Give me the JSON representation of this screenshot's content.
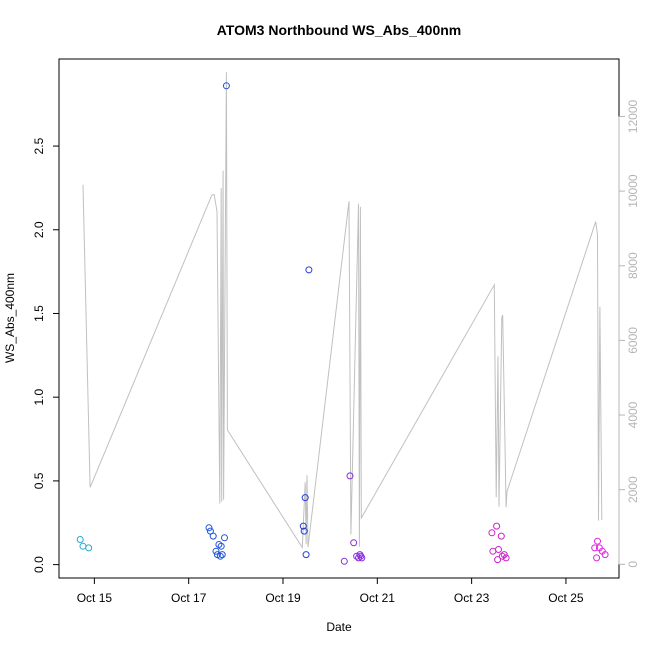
{
  "chart_data": {
    "type": "scatter",
    "title": "ATOM3 Northbound WS_Abs_400nm",
    "xlabel": "Date",
    "ylabel": "WS_Abs_400nm",
    "xlim": [
      "2016-10-14T06:00",
      "2016-10-26T03:00"
    ],
    "ylim": [
      -0.08,
      3.02
    ],
    "y2lim": [
      -367,
      13540
    ],
    "grid": false,
    "legend": "none",
    "x_ticks": [
      {
        "date": "2016-10-15",
        "label": "Oct 15"
      },
      {
        "date": "2016-10-17",
        "label": "Oct 17"
      },
      {
        "date": "2016-10-19",
        "label": "Oct 19"
      },
      {
        "date": "2016-10-21",
        "label": "Oct 21"
      },
      {
        "date": "2016-10-23",
        "label": "Oct 23"
      },
      {
        "date": "2016-10-25",
        "label": "Oct 25"
      }
    ],
    "y_ticks": [
      {
        "value": 0.0,
        "label": "0.0"
      },
      {
        "value": 0.5,
        "label": "0.5"
      },
      {
        "value": 1.0,
        "label": "1.0"
      },
      {
        "value": 1.5,
        "label": "1.5"
      },
      {
        "value": 2.0,
        "label": "2.0"
      },
      {
        "value": 2.5,
        "label": "2.5"
      }
    ],
    "y2_ticks": [
      {
        "value": 0,
        "label": "0"
      },
      {
        "value": 2000,
        "label": "2000"
      },
      {
        "value": 4000,
        "label": "4000"
      },
      {
        "value": 6000,
        "label": "6000"
      },
      {
        "value": 8000,
        "label": "8000"
      },
      {
        "value": 10000,
        "label": "10000"
      },
      {
        "value": 12000,
        "label": "12000"
      }
    ],
    "line_color": "#c0c0c0",
    "altitude_line": [
      [
        "2016-10-14T18:14",
        10170
      ],
      [
        "2016-10-14T21:50",
        2060
      ],
      [
        "2016-10-17T11:46",
        9890
      ],
      [
        "2016-10-17T12:58",
        9910
      ],
      [
        "2016-10-17T14:24",
        9450
      ],
      [
        "2016-10-17T15:50",
        1630
      ],
      [
        "2016-10-17T16:34",
        10080
      ],
      [
        "2016-10-17T16:48",
        1680
      ],
      [
        "2016-10-17T17:31",
        10550
      ],
      [
        "2016-10-17T17:46",
        1730
      ],
      [
        "2016-10-17T19:12",
        13190
      ],
      [
        "2016-10-17T19:41",
        3600
      ],
      [
        "2016-10-19T09:50",
        450
      ],
      [
        "2016-10-19T11:17",
        2200
      ],
      [
        "2016-10-19T11:46",
        540
      ],
      [
        "2016-10-19T12:14",
        2390
      ],
      [
        "2016-10-19T12:43",
        460
      ],
      [
        "2016-10-20T09:36",
        9730
      ],
      [
        "2016-10-20T10:34",
        800
      ],
      [
        "2016-10-20T14:24",
        9660
      ],
      [
        "2016-10-20T14:53",
        470
      ],
      [
        "2016-10-20T15:22",
        9580
      ],
      [
        "2016-10-20T15:50",
        1240
      ],
      [
        "2016-10-23T11:31",
        7490
      ],
      [
        "2016-10-23T12:29",
        1800
      ],
      [
        "2016-10-23T13:26",
        5570
      ],
      [
        "2016-10-23T13:55",
        1540
      ],
      [
        "2016-10-23T15:22",
        6610
      ],
      [
        "2016-10-23T15:50",
        6680
      ],
      [
        "2016-10-23T17:31",
        1530
      ],
      [
        "2016-10-23T18:00",
        1950
      ],
      [
        "2016-10-25T15:07",
        9180
      ],
      [
        "2016-10-25T16:05",
        8830
      ],
      [
        "2016-10-25T16:34",
        1170
      ],
      [
        "2016-10-25T17:17",
        6900
      ],
      [
        "2016-10-25T18:14",
        1190
      ]
    ],
    "points": [
      {
        "x": "2016-10-14T16:48",
        "y": 0.15,
        "color": "#22aad8"
      },
      {
        "x": "2016-10-14T18:14",
        "y": 0.11,
        "color": "#22aad8"
      },
      {
        "x": "2016-10-14T21:07",
        "y": 0.1,
        "color": "#22aad8"
      },
      {
        "x": "2016-10-17T10:19",
        "y": 0.22,
        "color": "#2255dd"
      },
      {
        "x": "2016-10-17T11:02",
        "y": 0.2,
        "color": "#2255dd"
      },
      {
        "x": "2016-10-17T12:29",
        "y": 0.17,
        "color": "#2255dd"
      },
      {
        "x": "2016-10-17T13:55",
        "y": 0.08,
        "color": "#2255dd"
      },
      {
        "x": "2016-10-17T14:38",
        "y": 0.06,
        "color": "#2255dd"
      },
      {
        "x": "2016-10-17T15:22",
        "y": 0.12,
        "color": "#2255dd"
      },
      {
        "x": "2016-10-17T16:05",
        "y": 0.05,
        "color": "#2255dd"
      },
      {
        "x": "2016-10-17T16:34",
        "y": 0.11,
        "color": "#2255dd"
      },
      {
        "x": "2016-10-17T17:02",
        "y": 0.06,
        "color": "#2255dd"
      },
      {
        "x": "2016-10-17T18:14",
        "y": 0.16,
        "color": "#2255dd"
      },
      {
        "x": "2016-10-17T19:12",
        "y": 2.86,
        "color": "#2255dd"
      },
      {
        "x": "2016-10-19T10:19",
        "y": 0.23,
        "color": "#2a3fd9"
      },
      {
        "x": "2016-10-19T10:48",
        "y": 0.2,
        "color": "#2a3fd9"
      },
      {
        "x": "2016-10-19T11:17",
        "y": 0.4,
        "color": "#2a3fd9"
      },
      {
        "x": "2016-10-19T11:46",
        "y": 0.06,
        "color": "#2a3fd9"
      },
      {
        "x": "2016-10-19T13:12",
        "y": 1.76,
        "color": "#2a3fd9"
      },
      {
        "x": "2016-10-20T07:12",
        "y": 0.02,
        "color": "#8a2be2"
      },
      {
        "x": "2016-10-20T10:05",
        "y": 0.53,
        "color": "#8a2be2"
      },
      {
        "x": "2016-10-20T12:00",
        "y": 0.13,
        "color": "#8a2be2"
      },
      {
        "x": "2016-10-20T13:26",
        "y": 0.05,
        "color": "#8a2be2"
      },
      {
        "x": "2016-10-20T14:24",
        "y": 0.04,
        "color": "#8a2be2"
      },
      {
        "x": "2016-10-20T15:07",
        "y": 0.06,
        "color": "#8a2be2"
      },
      {
        "x": "2016-10-20T15:36",
        "y": 0.05,
        "color": "#8a2be2"
      },
      {
        "x": "2016-10-20T16:05",
        "y": 0.04,
        "color": "#8a2be2"
      },
      {
        "x": "2016-10-23T10:19",
        "y": 0.19,
        "color": "#cc22cc"
      },
      {
        "x": "2016-10-23T10:48",
        "y": 0.08,
        "color": "#cc22cc"
      },
      {
        "x": "2016-10-23T12:43",
        "y": 0.23,
        "color": "#cc22cc"
      },
      {
        "x": "2016-10-23T13:12",
        "y": 0.03,
        "color": "#cc22cc"
      },
      {
        "x": "2016-10-23T13:41",
        "y": 0.09,
        "color": "#cc22cc"
      },
      {
        "x": "2016-10-23T15:07",
        "y": 0.17,
        "color": "#cc22cc"
      },
      {
        "x": "2016-10-23T15:36",
        "y": 0.05,
        "color": "#cc22cc"
      },
      {
        "x": "2016-10-23T16:34",
        "y": 0.06,
        "color": "#cc22cc"
      },
      {
        "x": "2016-10-23T17:31",
        "y": 0.04,
        "color": "#cc22cc"
      },
      {
        "x": "2016-10-25T14:38",
        "y": 0.1,
        "color": "#e026e0"
      },
      {
        "x": "2016-10-25T15:36",
        "y": 0.04,
        "color": "#e026e0"
      },
      {
        "x": "2016-10-25T16:05",
        "y": 0.14,
        "color": "#e026e0"
      },
      {
        "x": "2016-10-25T17:02",
        "y": 0.1,
        "color": "#e026e0"
      },
      {
        "x": "2016-10-25T18:29",
        "y": 0.08,
        "color": "#e026e0"
      },
      {
        "x": "2016-10-25T19:55",
        "y": 0.06,
        "color": "#e026e0"
      }
    ]
  }
}
